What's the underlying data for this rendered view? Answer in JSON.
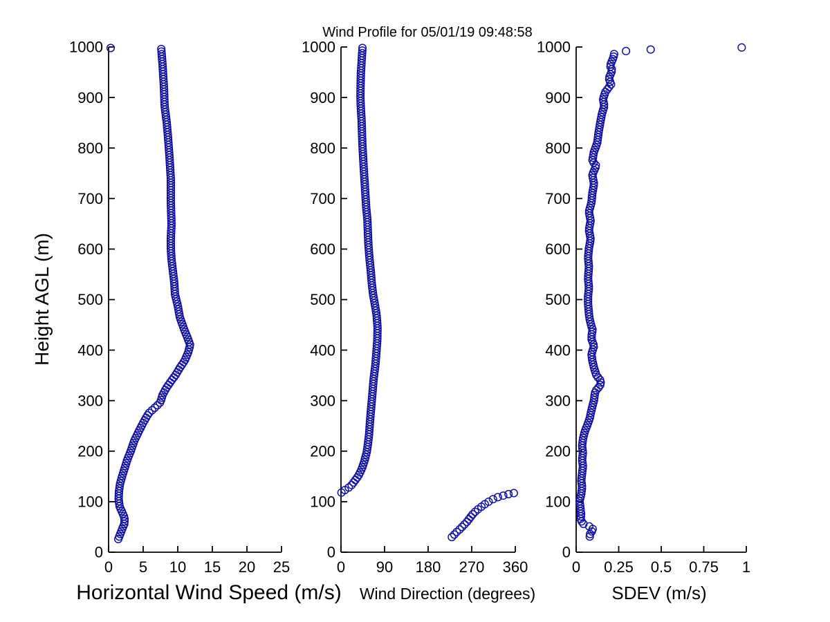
{
  "figure": {
    "title": "Wind Profile for  05/01/19 09:48:58",
    "ylabel": "Height AGL (m)",
    "background": "#ffffff",
    "text_color": "#000000",
    "axis_color": "#000000",
    "marker": {
      "color": "#1111a0",
      "radius": 5.3,
      "stroke_width": 1.5
    },
    "height_ticks": {
      "values": [
        0,
        100,
        200,
        300,
        400,
        500,
        600,
        700,
        800,
        900,
        1000
      ],
      "labels": [
        "0",
        "100",
        "200",
        "300",
        "400",
        "500",
        "600",
        "700",
        "800",
        "900",
        "1000"
      ]
    }
  },
  "chart_data": [
    {
      "type": "scatter",
      "xlabel": "Horizontal Wind Speed (m/s)",
      "ylabel": "Height AGL (m)",
      "xlim": [
        0,
        25
      ],
      "ylim": [
        0,
        1000
      ],
      "xtick_values": [
        0,
        5,
        10,
        15,
        20,
        25
      ],
      "xtick_labels": [
        "0",
        "5",
        "10",
        "15",
        "20",
        "25"
      ],
      "grid": false,
      "legend": null,
      "series": [
        {
          "name": "wind-speed-profile",
          "marker": "circle",
          "sample_step_m": 5,
          "anchor_heights_m": [
            26,
            33,
            47,
            57,
            68,
            78,
            90,
            105,
            120,
            135,
            150,
            165,
            183,
            200,
            220,
            240,
            256,
            275,
            290,
            297,
            311,
            324,
            338,
            351,
            365,
            379,
            395,
            410,
            425,
            438,
            465,
            488,
            510,
            533,
            556,
            579,
            601,
            624,
            647,
            692,
            738,
            783,
            820,
            851,
            883,
            920,
            965,
            999
          ],
          "anchor_values": [
            1.4,
            1.6,
            2.0,
            2.3,
            2.3,
            2.0,
            1.6,
            1.45,
            1.5,
            1.65,
            1.95,
            2.3,
            2.7,
            3.2,
            3.7,
            4.4,
            5.0,
            5.8,
            7.0,
            7.5,
            7.8,
            8.3,
            9.0,
            9.7,
            10.3,
            11.0,
            11.5,
            11.8,
            11.4,
            11.0,
            10.3,
            10.0,
            9.6,
            9.5,
            9.3,
            9.1,
            9.0,
            9.0,
            9.1,
            9.0,
            9.0,
            8.8,
            8.6,
            8.4,
            8.1,
            8.0,
            7.8,
            7.6
          ]
        },
        {
          "name": "wind-speed-outliers",
          "marker": "circle",
          "points": [
            [
              0.3,
              998
            ]
          ]
        }
      ]
    },
    {
      "type": "scatter",
      "xlabel": "Wind Direction (degrees)",
      "xlim": [
        0,
        360
      ],
      "ylim": [
        0,
        1000
      ],
      "xtick_values": [
        0,
        90,
        180,
        270,
        360
      ],
      "xtick_labels": [
        "0",
        "90",
        "180",
        "270",
        "360"
      ],
      "grid": false,
      "legend": null,
      "series": [
        {
          "name": "wind-direction-upper-branch",
          "marker": "circle",
          "sample_step_m": 5,
          "anchor_heights_m": [
            118,
            121,
            124,
            128,
            133,
            142,
            151,
            165,
            179,
            197,
            213,
            233,
            260,
            288,
            315,
            342,
            370,
            400,
            420,
            445,
            470,
            490,
            510,
            533,
            556,
            580,
            606,
            633,
            660,
            683,
            706,
            730,
            756,
            780,
            804,
            830,
            856,
            880,
            901,
            925,
            947,
            975,
            999
          ],
          "anchor_values": [
            1,
            4,
            10,
            16,
            22,
            29,
            36,
            43,
            48,
            53,
            55.5,
            58,
            60,
            62.5,
            65,
            67.3,
            71,
            73.5,
            75,
            75.5,
            73.5,
            70,
            66.3,
            63.5,
            61.6,
            59,
            56.8,
            55.5,
            54.4,
            52,
            50.5,
            49,
            47.2,
            45.8,
            44.4,
            43.4,
            42.5,
            41,
            40.1,
            40.5,
            41.1,
            42.8,
            44.4
          ]
        },
        {
          "name": "wind-direction-lower-branch",
          "marker": "circle",
          "points": [
            [
              229,
              30
            ],
            [
              234,
              35
            ],
            [
              239,
              40
            ],
            [
              245,
              45
            ],
            [
              250,
              50
            ],
            [
              255,
              55
            ],
            [
              260,
              60
            ],
            [
              264,
              65
            ],
            [
              268,
              70
            ],
            [
              272,
              75
            ],
            [
              277,
              80
            ],
            [
              283,
              85
            ],
            [
              290,
              90
            ],
            [
              297,
              95
            ],
            [
              305,
              100
            ],
            [
              314,
              105
            ],
            [
              324,
              109
            ],
            [
              335,
              112
            ],
            [
              346,
              115
            ],
            [
              357,
              117
            ]
          ]
        }
      ]
    },
    {
      "type": "scatter",
      "xlabel": "SDEV  (m/s)",
      "xlim": [
        0,
        1
      ],
      "ylim": [
        0,
        1000
      ],
      "xtick_values": [
        0,
        0.25,
        0.5,
        0.75,
        1
      ],
      "xtick_labels": [
        "0",
        "0.25",
        "0.5",
        "0.75",
        "1"
      ],
      "grid": false,
      "legend": null,
      "series": [
        {
          "name": "sdev-profile",
          "marker": "circle",
          "sample_step_m": 5,
          "anchor_heights_m": [
            31,
            35,
            40,
            45,
            50,
            55,
            62,
            67,
            74,
            81,
            88,
            101,
            115,
            129,
            142,
            156,
            170,
            183,
            197,
            210,
            224,
            238,
            251,
            265,
            274,
            288,
            301,
            315,
            322,
            329,
            335,
            342,
            349,
            365,
            379,
            392,
            408,
            422,
            432,
            440,
            447,
            460,
            472,
            492,
            506,
            524,
            542,
            565,
            583,
            601,
            620,
            638,
            656,
            674,
            692,
            710,
            729,
            747,
            765,
            774,
            792,
            810,
            829,
            847,
            867,
            883,
            897,
            911,
            926,
            938,
            954,
            963,
            979,
            990
          ],
          "anchor_values": [
            0.08,
            0.08,
            0.09,
            0.1,
            0.085,
            0.045,
            0.03,
            0.025,
            0.03,
            0.027,
            0.025,
            0.02,
            0.03,
            0.035,
            0.03,
            0.035,
            0.04,
            0.035,
            0.04,
            0.035,
            0.04,
            0.05,
            0.065,
            0.08,
            0.085,
            0.095,
            0.105,
            0.11,
            0.12,
            0.14,
            0.145,
            0.14,
            0.12,
            0.105,
            0.095,
            0.09,
            0.105,
            0.09,
            0.092,
            0.097,
            0.09,
            0.08,
            0.075,
            0.07,
            0.07,
            0.075,
            0.07,
            0.075,
            0.07,
            0.075,
            0.085,
            0.075,
            0.085,
            0.075,
            0.09,
            0.095,
            0.105,
            0.095,
            0.118,
            0.095,
            0.104,
            0.124,
            0.131,
            0.14,
            0.151,
            0.165,
            0.158,
            0.172,
            0.205,
            0.192,
            0.212,
            0.199,
            0.219,
            0.2255
          ]
        },
        {
          "name": "sdev-outliers",
          "marker": "circle",
          "points": [
            [
              0.293,
              992
            ],
            [
              0.438,
              995
            ],
            [
              0.973,
              999
            ]
          ]
        }
      ]
    }
  ]
}
